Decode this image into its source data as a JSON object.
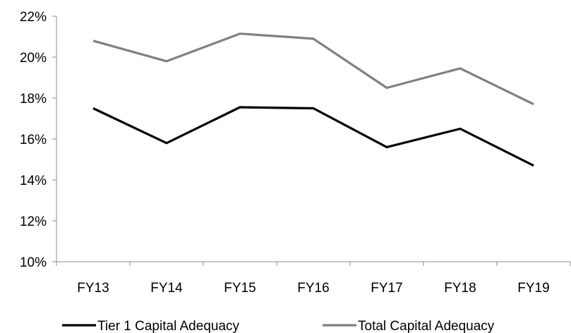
{
  "chart_data": {
    "type": "line",
    "title": "",
    "xlabel": "",
    "ylabel": "",
    "categories": [
      "FY13",
      "FY14",
      "FY15",
      "FY16",
      "FY17",
      "FY18",
      "FY19"
    ],
    "ylim": [
      10,
      22
    ],
    "yticks": [
      10,
      12,
      14,
      16,
      18,
      20,
      22
    ],
    "ytick_labels": [
      "10%",
      "12%",
      "14%",
      "16%",
      "18%",
      "20%",
      "22%"
    ],
    "grid": false,
    "legend": "bottom",
    "series": [
      {
        "name": "Tier 1 Capital Adequacy",
        "color": "#000000",
        "values": [
          17.5,
          15.8,
          17.55,
          17.5,
          15.6,
          16.5,
          14.7
        ]
      },
      {
        "name": "Total Capital Adequacy",
        "color": "#808080",
        "values": [
          20.8,
          19.8,
          21.15,
          20.9,
          18.5,
          19.45,
          17.7
        ]
      }
    ]
  }
}
